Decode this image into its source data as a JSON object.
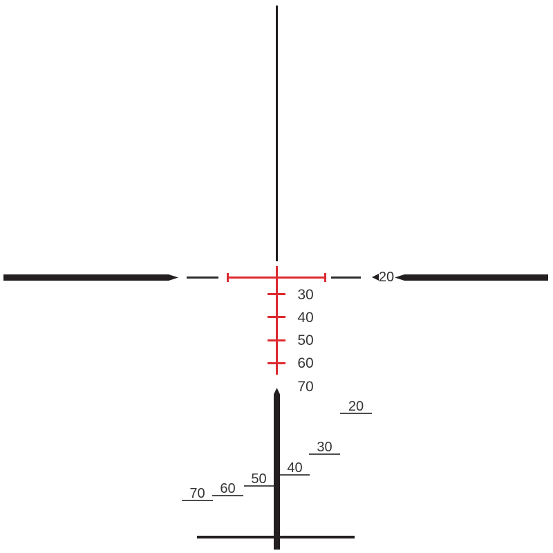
{
  "diagram": {
    "description": "Ballistic drop compensating riflescope crosshair reticle",
    "colors": {
      "reticle_black": "#231f20",
      "illuminated_red": "#dd2a30",
      "label_text": "#343434",
      "stadia_line": "#4c4c4c"
    },
    "main_axis": {
      "range_label": "20",
      "marker_icon": "left-triangle"
    },
    "bdc_ladder": {
      "labels": [
        "30",
        "40",
        "50",
        "60",
        "70"
      ]
    },
    "stadia_steps": {
      "labels": [
        "20",
        "30",
        "40",
        "50",
        "60",
        "70"
      ]
    }
  }
}
